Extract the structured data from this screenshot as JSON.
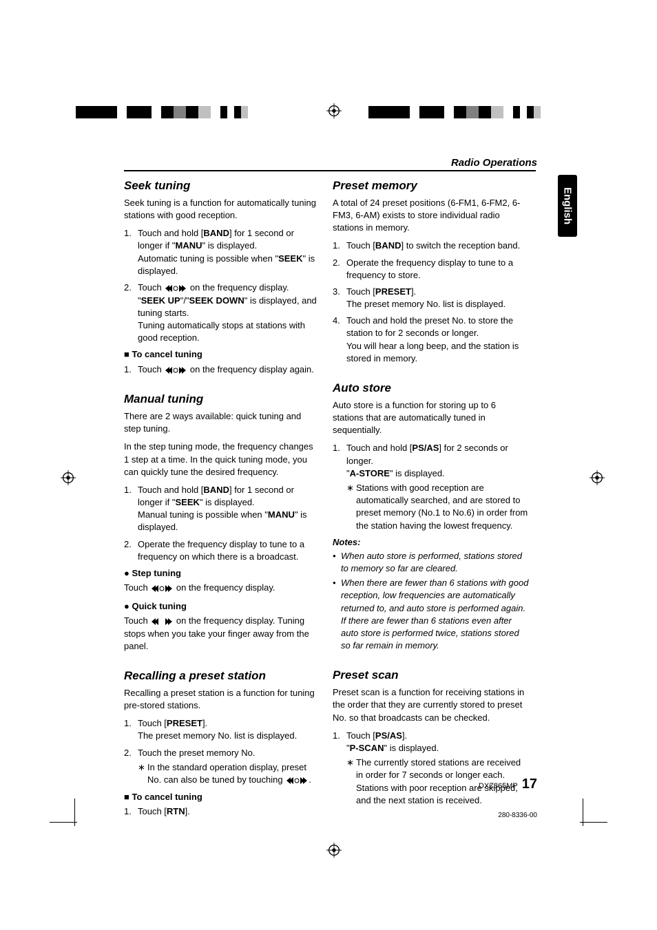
{
  "header": {
    "title": "Radio Operations"
  },
  "sideTab": "English",
  "left": {
    "seek": {
      "title": "Seek tuning",
      "intro": "Seek tuning is a function for automatically tuning stations with good reception.",
      "steps": [
        "Touch and hold [<b>BAND</b>] for 1 second or longer if \"<b>MANU</b>\" is displayed.<br>Automatic tuning is possible when \"<b>SEEK</b>\" is displayed.",
        "Touch <span class='arrows'><svg viewBox='0 0 34 12'><path d='M2 6 L8 1 L8 11 Z M6 6 L12 1 L12 11 Z' fill='#000'/><path d='M32 6 L26 1 L26 11 Z M28 6 L22 1 L22 11 Z' fill='#000'/><circle cx='17' cy='6' r='3' fill='none' stroke='#000'/></svg></span> on the frequency display.<br>\"<b>SEEK UP</b>\"/\"<b>SEEK DOWN</b>\" is displayed, and tuning starts.<br>Tuning automatically stops at stations with good reception."
      ],
      "cancelTitle": "To cancel tuning",
      "cancelStep": "Touch <span class='arrows'><svg viewBox='0 0 34 12'><path d='M2 6 L8 1 L8 11 Z M6 6 L12 1 L12 11 Z' fill='#000'/><path d='M32 6 L26 1 L26 11 Z M28 6 L22 1 L22 11 Z' fill='#000'/><circle cx='17' cy='6' r='3' fill='none' stroke='#000'/></svg></span> on the frequency display again."
    },
    "manual": {
      "title": "Manual tuning",
      "p1": "There are 2 ways available: quick tuning and step tuning.",
      "p2": "In the step tuning mode, the frequency changes 1 step at a time. In the quick tuning mode, you can quickly tune the desired frequency.",
      "steps": [
        "Touch and hold [<b>BAND</b>] for 1 second or longer if \"<b>SEEK</b>\" is displayed.<br>Manual tuning is possible when \"<b>MANU</b>\" is displayed.",
        "Operate the frequency display to tune to a frequency on which there is a broadcast."
      ],
      "stepTitle": "Step tuning",
      "stepText": "Touch <span class='arrows'><svg viewBox='0 0 34 12'><path d='M2 6 L8 1 L8 11 Z M6 6 L12 1 L12 11 Z' fill='#000'/><path d='M32 6 L26 1 L26 11 Z M28 6 L22 1 L22 11 Z' fill='#000'/><circle cx='17' cy='6' r='3' fill='none' stroke='#000'/></svg></span> on the frequency display.",
      "quickTitle": "Quick tuning",
      "quickText": "Touch <span class='arrows'><svg viewBox='0 0 34 12'><path d='M2 6 L8 1 L8 11 Z M6 6 L12 1 L12 11 Z' fill='#000'/><path d='M32 6 L26 1 L26 11 Z M28 6 L22 1 L22 11 Z' fill='#000'/><rect x='2' y='0' width='30' height='12' fill='none' stroke='#000' stroke-width='0'/></svg></span> on the frequency display. Tuning stops when you take your finger away from the panel."
    },
    "recall": {
      "title": "Recalling a preset station",
      "intro": "Recalling a preset station is a function for tuning pre-stored stations.",
      "steps": [
        "Touch [<b>PRESET</b>].<br>The preset memory No. list is displayed.",
        "Touch the preset memory No.<div class='sub-star'><span class='star'>∗</span><span class='star-content'>In the standard operation display, preset No. can also be tuned by touching <span class='arrows'><svg viewBox='0 0 34 12'><path d='M2 6 L8 1 L8 11 Z M6 6 L12 1 L12 11 Z' fill='#000'/><path d='M32 6 L26 1 L26 11 Z M28 6 L22 1 L22 11 Z' fill='#000'/><circle cx='17' cy='6' r='3' fill='none' stroke='#000'/></svg></span>.</span></div>"
      ],
      "cancelTitle": "To cancel tuning",
      "cancelStep": "Touch [<b>RTN</b>]."
    }
  },
  "right": {
    "preset": {
      "title": "Preset memory",
      "intro": "A total of 24 preset positions (6-FM1, 6-FM2, 6-FM3, 6-AM) exists to store individual radio stations in memory.",
      "steps": [
        "Touch [<b>BAND</b>] to switch the reception band.",
        "Operate the frequency display to tune to a frequency to store.",
        "Touch [<b>PRESET</b>].<br>The preset memory No. list is displayed.",
        "Touch and hold the preset No. to store the station to for 2 seconds or longer.<br>You will hear a long beep, and the station is stored in memory."
      ]
    },
    "auto": {
      "title": "Auto store",
      "intro": "Auto store is a function for storing up to 6 stations that are automatically tuned in sequentially.",
      "step": "Touch and hold [<b>PS/AS</b>] for 2 seconds or longer.<br>\"<b>A-STORE</b>\" is displayed.",
      "star": "Stations with good reception are automatically searched, and are stored to preset memory (No.1 to No.6) in order from the station having the lowest frequency.",
      "notesTitle": "Notes:",
      "notes": [
        "When auto store is performed, stations stored to memory so far are cleared.",
        "When there are fewer than 6 stations with good reception, low frequencies are automatically returned to, and auto store is performed again. If there are fewer than 6 stations even after auto store is performed twice, stations stored so far remain in memory."
      ]
    },
    "scan": {
      "title": "Preset scan",
      "intro": "Preset scan is a function for receiving stations in the order that they are currently stored to preset No. so that broadcasts can be checked.",
      "step": "Touch [<b>PS/AS</b>].<br>\"<b>P-SCAN</b>\" is displayed.",
      "star": "The currently stored stations are received in order for 7 seconds or longer each. Stations with poor reception are skipped, and the next station is received."
    }
  },
  "footer": {
    "model": "DXZ865MP",
    "page": "17",
    "code": "280-8336-00"
  }
}
